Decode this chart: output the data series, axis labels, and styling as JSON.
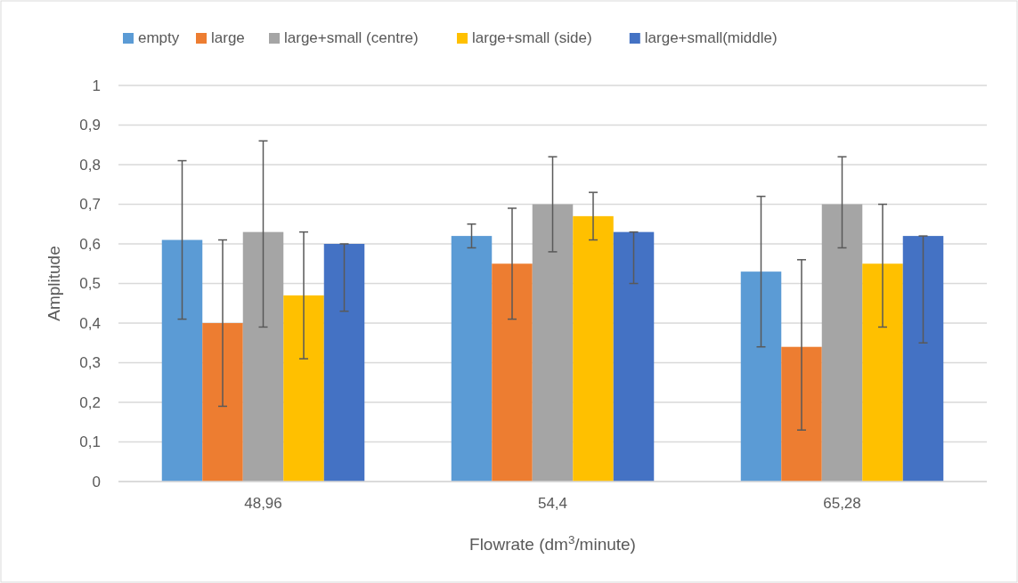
{
  "chart_data": {
    "type": "bar",
    "xlabel": "Flowrate (dm$^{3}$/minute)",
    "ylabel": "Amplitude",
    "categories": [
      "48,96",
      "54,4",
      "65,28"
    ],
    "series": [
      {
        "name": "empty",
        "color": "#5b9bd5",
        "values": [
          0.61,
          0.62,
          0.53
        ],
        "errors": [
          [
            0.41,
            0.81
          ],
          [
            0.59,
            0.65
          ],
          [
            0.34,
            0.72
          ]
        ]
      },
      {
        "name": "large",
        "color": "#ed7d31",
        "values": [
          0.4,
          0.55,
          0.34
        ],
        "errors": [
          [
            0.19,
            0.61
          ],
          [
            0.41,
            0.69
          ],
          [
            0.13,
            0.56
          ]
        ]
      },
      {
        "name": "large+small (centre)",
        "color": "#a5a5a5",
        "values": [
          0.63,
          0.7,
          0.7
        ],
        "errors": [
          [
            0.39,
            0.86
          ],
          [
            0.58,
            0.82
          ],
          [
            0.59,
            0.82
          ]
        ]
      },
      {
        "name": "large+small (side)",
        "color": "#ffc000",
        "values": [
          0.47,
          0.67,
          0.55
        ],
        "errors": [
          [
            0.31,
            0.63
          ],
          [
            0.61,
            0.73
          ],
          [
            0.39,
            0.7
          ]
        ]
      },
      {
        "name": "large+small(middle)",
        "color": "#4472c4",
        "values": [
          0.6,
          0.63,
          0.62
        ],
        "errors": [
          [
            0.43,
            0.6
          ],
          [
            0.5,
            0.63
          ],
          [
            0.35,
            0.62
          ]
        ]
      }
    ],
    "ylim": [
      0,
      1
    ],
    "yticks": [
      0,
      {
        "value": 0.1,
        "label": "0,1"
      },
      {
        "value": 0.2,
        "label": "0,2"
      },
      {
        "value": 0.3,
        "label": "0,3"
      },
      {
        "value": 0.4,
        "label": "0,4"
      },
      {
        "value": 0.5,
        "label": "0,5"
      },
      {
        "value": 0.6,
        "label": "0,6"
      },
      {
        "value": 0.7,
        "label": "0,7"
      },
      {
        "value": 0.8,
        "label": "0,8"
      },
      {
        "value": 0.9,
        "label": "0,9"
      },
      1
    ],
    "grid": "y",
    "legend": "top"
  }
}
